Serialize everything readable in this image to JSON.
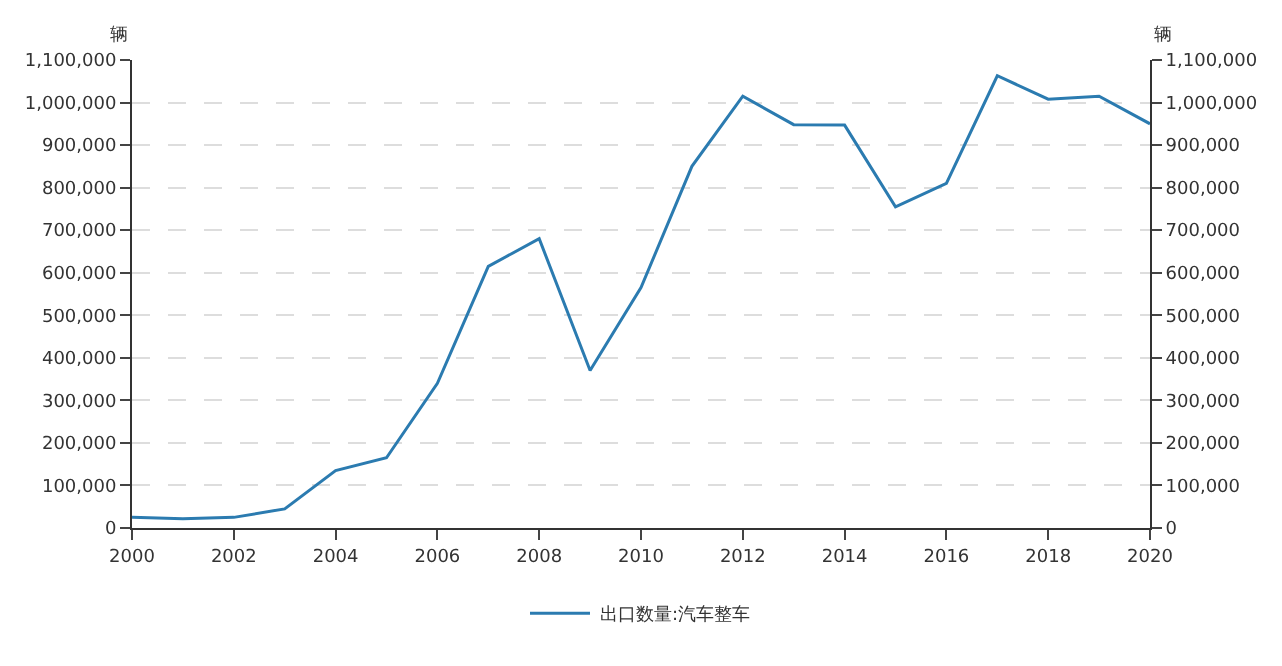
{
  "chart_data": {
    "type": "line",
    "ylabel": "辆",
    "y2label": "辆",
    "x": [
      2000,
      2001,
      2002,
      2003,
      2004,
      2005,
      2006,
      2007,
      2008,
      2009,
      2010,
      2011,
      2012,
      2013,
      2014,
      2015,
      2016,
      2017,
      2018,
      2019,
      2020
    ],
    "series": [
      {
        "name": "出口数量:汽车整车",
        "color": "#2b7bb0",
        "values": [
          25000,
          22000,
          25000,
          45000,
          135000,
          165000,
          340000,
          615000,
          680000,
          370000,
          565000,
          850000,
          1015000,
          948000,
          947000,
          755000,
          810000,
          1063000,
          1008000,
          1015000,
          950000
        ]
      }
    ],
    "xlim": [
      2000,
      2020
    ],
    "xticks": [
      2000,
      2002,
      2004,
      2006,
      2008,
      2010,
      2012,
      2014,
      2016,
      2018,
      2020
    ],
    "ylim": [
      0,
      1100000
    ],
    "yticks": [
      0,
      {
        "value": 100000,
        "label": "100,000"
      },
      {
        "value": 200000,
        "label": "200,000"
      },
      {
        "value": 300000,
        "label": "300,000"
      },
      {
        "value": 400000,
        "label": "400,000"
      },
      {
        "value": 500000,
        "label": "500,000"
      },
      {
        "value": 600000,
        "label": "600,000"
      },
      {
        "value": 700000,
        "label": "700,000"
      },
      {
        "value": 800000,
        "label": "800,000"
      },
      {
        "value": 900000,
        "label": "900,000"
      },
      {
        "value": 1000000,
        "label": "1,000,000"
      },
      {
        "value": 1100000,
        "label": "1,100,000"
      }
    ],
    "y2lim": [
      0,
      1100000
    ],
    "y2ticks": [
      0,
      {
        "value": 100000,
        "label": "100,000"
      },
      {
        "value": 200000,
        "label": "200,000"
      },
      {
        "value": 300000,
        "label": "300,000"
      },
      {
        "value": 400000,
        "label": "400,000"
      },
      {
        "value": 500000,
        "label": "500,000"
      },
      {
        "value": 600000,
        "label": "600,000"
      },
      {
        "value": 700000,
        "label": "700,000"
      },
      {
        "value": 800000,
        "label": "800,000"
      },
      {
        "value": 900000,
        "label": "900,000"
      },
      {
        "value": 1000000,
        "label": "1,000,000"
      },
      {
        "value": 1100000,
        "label": "1,100,000"
      }
    ],
    "grid": "y",
    "legend": "bottom",
    "marker": "none",
    "line_style": "solid"
  }
}
